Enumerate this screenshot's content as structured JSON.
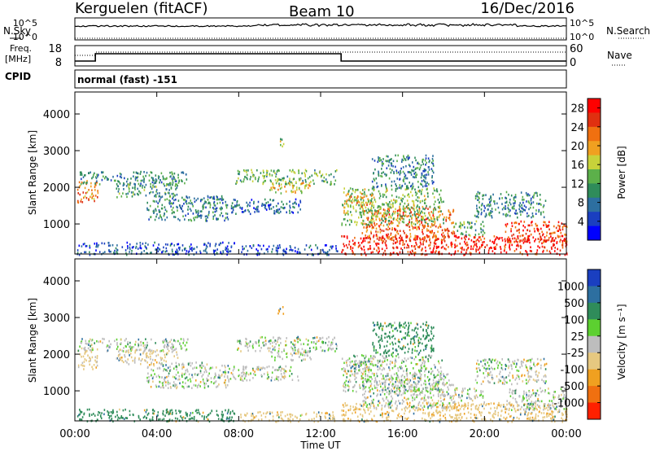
{
  "header": {
    "station": "Kerguelen (fitACF)",
    "beam": "Beam 10",
    "date": "16/Dec/2016"
  },
  "noise_panel": {
    "left_label": "N.Sky",
    "right_label": "N.Search",
    "left_ticks": [
      "10^5",
      "10^0"
    ],
    "right_ticks": [
      "10^5",
      "10^0"
    ]
  },
  "freq_panel": {
    "left_label_1": "Freq.",
    "left_label_2": "[MHz]",
    "right_label": "Nave",
    "left_ticks": [
      "18",
      "8"
    ],
    "right_ticks": [
      "60",
      "0"
    ]
  },
  "cpid": {
    "label": "CPID",
    "value": "normal (fast) -151"
  },
  "colors": {
    "power_scale": [
      "#0000ff",
      "#1a3fc0",
      "#2d6fa0",
      "#2f8c5a",
      "#5cb04a",
      "#c8d23a",
      "#f0a020",
      "#f07010",
      "#e03010",
      "#ff0000"
    ],
    "velocity_scale": [
      "#1a3fc0",
      "#2d6fa0",
      "#2f8c5a",
      "#5cd030",
      "#bdbdbd",
      "#e6c880",
      "#f0a020",
      "#f07010",
      "#ff2000"
    ]
  },
  "chart_data": [
    {
      "type": "heatmap",
      "title": "Power",
      "xlabel": "Time UT",
      "ylabel": "Slant Range [km]",
      "x_ticks": [
        "00:00",
        "04:00",
        "08:00",
        "12:00",
        "16:00",
        "20:00",
        "00:00"
      ],
      "y_ticks": [
        "1000",
        "2000",
        "3000",
        "4000"
      ],
      "xlim_hours": [
        0,
        24
      ],
      "ylim_km": [
        180,
        4600
      ],
      "colorbar": {
        "label": "Power [dB]",
        "ticks": [
          "4",
          "8",
          "12",
          "16",
          "20",
          "24",
          "28"
        ],
        "range": [
          0,
          30
        ]
      },
      "regions": [
        {
          "t0": 0.1,
          "t1": 7.8,
          "r0": 180,
          "r1": 520,
          "v": 6
        },
        {
          "t0": 0.1,
          "t1": 1.1,
          "r0": 1600,
          "r1": 2200,
          "v": 22
        },
        {
          "t0": 0.2,
          "t1": 5.5,
          "r0": 2100,
          "r1": 2450,
          "v": 10
        },
        {
          "t0": 2.0,
          "t1": 5.0,
          "r0": 1750,
          "r1": 2150,
          "v": 11
        },
        {
          "t0": 3.5,
          "t1": 7.5,
          "r0": 1100,
          "r1": 1800,
          "v": 9
        },
        {
          "t0": 7.5,
          "t1": 11.0,
          "r0": 1300,
          "r1": 1700,
          "v": 7
        },
        {
          "t0": 7.8,
          "t1": 12.8,
          "r0": 2100,
          "r1": 2500,
          "v": 13
        },
        {
          "t0": 9.5,
          "t1": 11.5,
          "r0": 1850,
          "r1": 2150,
          "v": 18
        },
        {
          "t0": 9.9,
          "t1": 10.2,
          "r0": 3100,
          "r1": 3350,
          "v": 14
        },
        {
          "t0": 8.0,
          "t1": 12.8,
          "r0": 180,
          "r1": 450,
          "v": 5
        },
        {
          "t0": 13.0,
          "t1": 24.0,
          "r0": 180,
          "r1": 700,
          "v": 27
        },
        {
          "t0": 14.0,
          "t1": 18.5,
          "r0": 550,
          "r1": 1500,
          "v": 23
        },
        {
          "t0": 13.0,
          "t1": 18.0,
          "r0": 1000,
          "r1": 2000,
          "v": 14
        },
        {
          "t0": 13.2,
          "t1": 14.5,
          "r0": 1500,
          "r1": 1850,
          "v": 20
        },
        {
          "t0": 14.5,
          "t1": 17.5,
          "r0": 2000,
          "r1": 2900,
          "v": 9
        },
        {
          "t0": 19.5,
          "t1": 23.0,
          "r0": 1200,
          "r1": 1900,
          "v": 10
        },
        {
          "t0": 21.0,
          "t1": 24.0,
          "r0": 500,
          "r1": 1100,
          "v": 25
        },
        {
          "t0": 18.5,
          "t1": 20.0,
          "r0": 700,
          "r1": 1100,
          "v": 12
        }
      ]
    },
    {
      "type": "heatmap",
      "title": "Velocity",
      "xlabel": "Time UT",
      "ylabel": "Slant Range [km]",
      "x_ticks": [
        "00:00",
        "04:00",
        "08:00",
        "12:00",
        "16:00",
        "20:00",
        "00:00"
      ],
      "y_ticks": [
        "1000",
        "2000",
        "3000",
        "4000"
      ],
      "xlim_hours": [
        0,
        24
      ],
      "ylim_km": [
        180,
        4600
      ],
      "colorbar": {
        "label": "Velocity [m s⁻¹]",
        "ticks": [
          "1000",
          "500",
          "100",
          "25",
          "-25",
          "-100",
          "-500",
          "-1000"
        ],
        "range": [
          -1200,
          1200
        ]
      },
      "regions": [
        {
          "t0": 0.1,
          "t1": 7.8,
          "r0": 180,
          "r1": 520,
          "v": 60
        },
        {
          "t0": 0.1,
          "t1": 1.1,
          "r0": 1600,
          "r1": 2200,
          "v": -40
        },
        {
          "t0": 0.2,
          "t1": 5.5,
          "r0": 2100,
          "r1": 2450,
          "v": 0
        },
        {
          "t0": 2.0,
          "t1": 5.0,
          "r0": 1750,
          "r1": 2150,
          "v": -30
        },
        {
          "t0": 3.5,
          "t1": 7.5,
          "r0": 1100,
          "r1": 1800,
          "v": 0
        },
        {
          "t0": 7.5,
          "t1": 11.0,
          "r0": 1300,
          "r1": 1700,
          "v": 0
        },
        {
          "t0": 7.8,
          "t1": 12.8,
          "r0": 2100,
          "r1": 2500,
          "v": 0
        },
        {
          "t0": 9.5,
          "t1": 11.5,
          "r0": 1850,
          "r1": 2150,
          "v": 0
        },
        {
          "t0": 9.9,
          "t1": 10.2,
          "r0": 3100,
          "r1": 3350,
          "v": -200
        },
        {
          "t0": 8.0,
          "t1": 12.8,
          "r0": 180,
          "r1": 450,
          "v": -60
        },
        {
          "t0": 13.0,
          "t1": 24.0,
          "r0": 180,
          "r1": 700,
          "v": -80
        },
        {
          "t0": 14.0,
          "t1": 18.5,
          "r0": 550,
          "r1": 1500,
          "v": 0
        },
        {
          "t0": 13.0,
          "t1": 18.0,
          "r0": 1000,
          "r1": 2000,
          "v": 0
        },
        {
          "t0": 13.2,
          "t1": 14.5,
          "r0": 1500,
          "r1": 1850,
          "v": 0
        },
        {
          "t0": 14.5,
          "t1": 17.5,
          "r0": 2000,
          "r1": 2900,
          "v": 50
        },
        {
          "t0": 19.5,
          "t1": 23.0,
          "r0": 1200,
          "r1": 1900,
          "v": 0
        },
        {
          "t0": 21.0,
          "t1": 24.0,
          "r0": 500,
          "r1": 1100,
          "v": 0
        },
        {
          "t0": 18.5,
          "t1": 20.0,
          "r0": 700,
          "r1": 1100,
          "v": 0
        }
      ]
    }
  ]
}
